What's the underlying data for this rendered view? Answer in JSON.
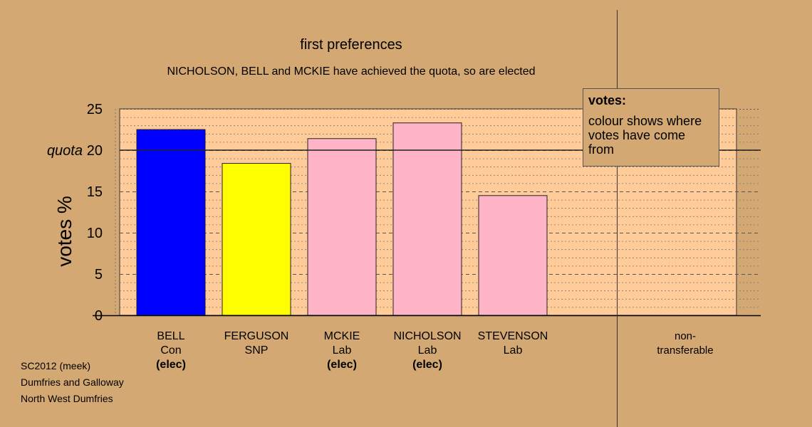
{
  "chart_data": {
    "type": "bar",
    "title": "first preferences",
    "subtitle": "NICHOLSON, BELL and MCKIE have achieved the quota, so are elected",
    "ylabel": "votes %",
    "ylim": [
      0,
      25
    ],
    "yticks": [
      0,
      5,
      10,
      15,
      20,
      25
    ],
    "quota": 20,
    "quota_label": "quota",
    "grid": true,
    "categories": [
      {
        "name": "BELL",
        "party": "Con",
        "status": "(elec)",
        "value": 22.5,
        "color": "#0000FF"
      },
      {
        "name": "FERGUSON",
        "party": "SNP",
        "status": "",
        "value": 18.4,
        "color": "#FFFF00"
      },
      {
        "name": "MCKIE",
        "party": "Lab",
        "status": "(elec)",
        "value": 21.4,
        "color": "#FFB3C6"
      },
      {
        "name": "NICHOLSON",
        "party": "Lab",
        "status": "(elec)",
        "value": 23.3,
        "color": "#FFB3C6"
      },
      {
        "name": "STEVENSON",
        "party": "Lab",
        "status": "",
        "value": 14.5,
        "color": "#FFB3C6"
      }
    ],
    "nontransferable": {
      "label_1": "non-",
      "label_2": "transferable",
      "value": 0
    },
    "legend": {
      "title": "votes:",
      "body": "colour shows where votes have come from",
      "position": "top-right"
    }
  },
  "footer": {
    "line1": "SC2012 (meek)",
    "line2": "Dumfries and Galloway",
    "line3": "North West Dumfries"
  },
  "colors": {
    "background": "#D4A873",
    "plot_background": "#FFCC99"
  }
}
